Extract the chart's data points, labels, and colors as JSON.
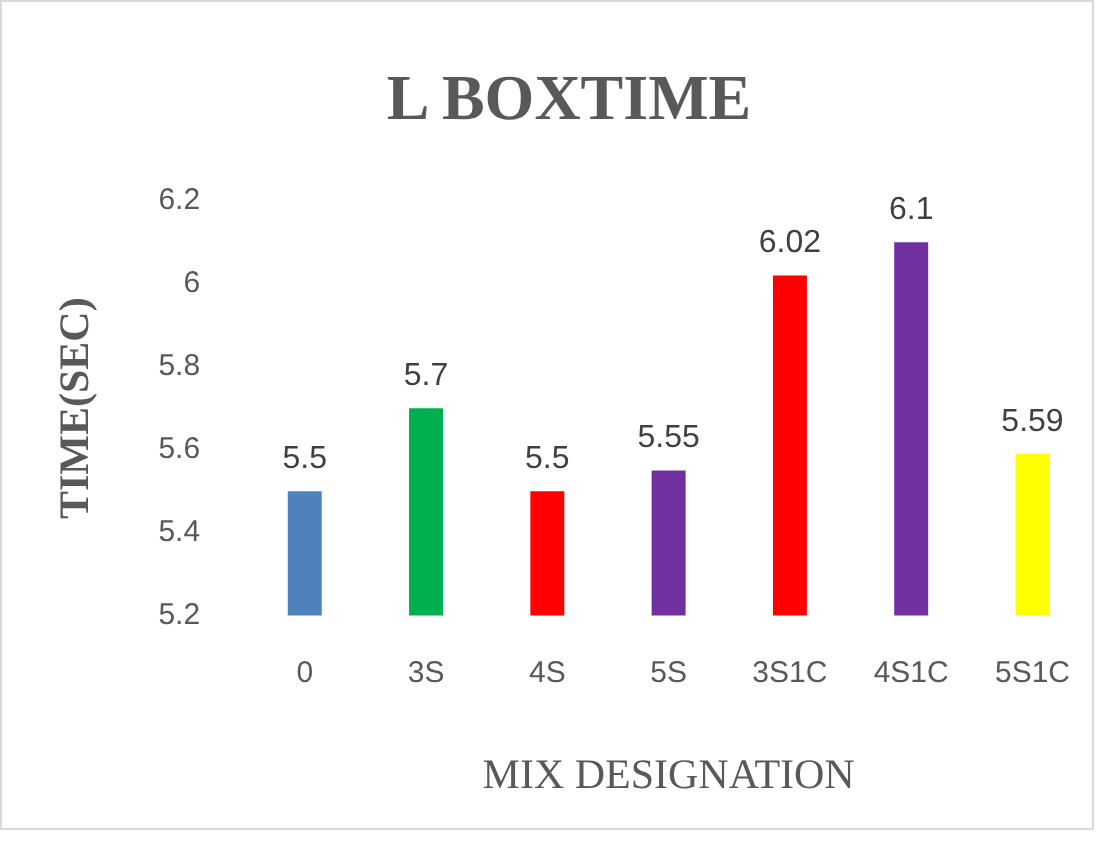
{
  "chart_data": {
    "type": "bar",
    "title": "L BOXTIME",
    "xlabel": "MIX DESIGNATION",
    "ylabel": "TIME(SEC)",
    "categories": [
      "0",
      "3S",
      "4S",
      "5S",
      "3S1C",
      "4S1C",
      "5S1C"
    ],
    "values": [
      5.5,
      5.7,
      5.5,
      5.55,
      6.02,
      6.1,
      5.59
    ],
    "colors": [
      "#4f81bd",
      "#00b050",
      "#ff0000",
      "#7030a0",
      "#ff0000",
      "#7030a0",
      "#ffff00"
    ],
    "ylim": [
      5.2,
      6.2
    ],
    "yticks": [
      5.2,
      5.4,
      5.6,
      5.8,
      6,
      6.2
    ],
    "grid": false,
    "legend": false,
    "data_labels": true
  }
}
